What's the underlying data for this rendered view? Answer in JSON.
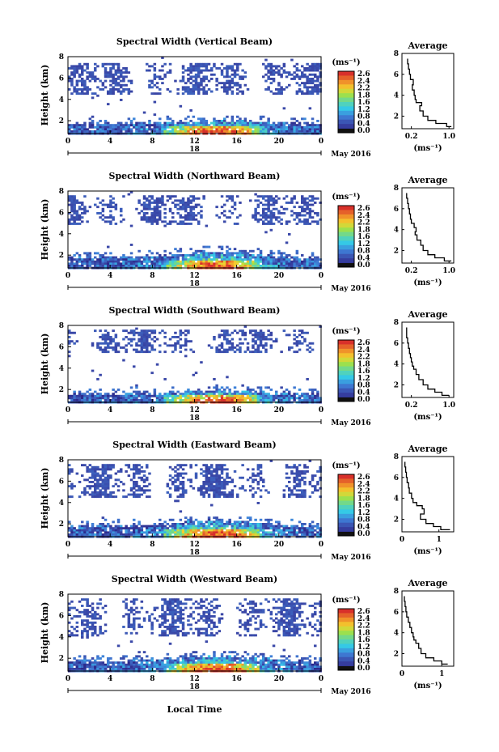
{
  "figure": {
    "colorbar_unit": "(ms⁻¹)",
    "colorbar_ticks": [
      "2.6",
      "2.4",
      "2.2",
      "1.8",
      "1.6",
      "1.2",
      "0.8",
      "0.4",
      "0.0"
    ],
    "x_ticks": [
      "0",
      "4",
      "8",
      "12",
      "16",
      "20",
      "0"
    ],
    "day_label": "18",
    "month_label": "May 2016",
    "xlabel": "Local Time",
    "ylabel": "Height (km)",
    "avg_title": "Average",
    "avg_unit": "(ms⁻¹)",
    "colors": {
      "dark_blue": "#3a48a8",
      "cyan": "#33c8e8",
      "green": "#7ad84a",
      "yellow": "#f4d22e",
      "orange": "#f08a2a",
      "red": "#d8302a"
    }
  },
  "chart_data": [
    {
      "type": "heatmap",
      "title": "Spectral Width (Vertical Beam)",
      "x_range_hours": [
        0,
        24
      ],
      "y_range_km": [
        0.8,
        8
      ],
      "y_ticks": [
        "2",
        "4",
        "6",
        "8"
      ],
      "upper_layer_km": [
        4.5,
        7.6
      ],
      "boundary_layer_top_km": 2.2,
      "max_width_ms": 2.4,
      "average_profile": {
        "x_ticks": [
          "0.2",
          "1.0"
        ],
        "xlim": [
          0,
          1.1
        ],
        "ylim": [
          0.8,
          8
        ],
        "height_km": [
          1.0,
          1.3,
          1.6,
          2.0,
          2.5,
          3.0,
          3.3,
          3.6,
          4.0,
          4.5,
          5.0,
          5.5,
          6.0,
          6.5,
          7.0,
          7.5
        ],
        "width_ms": [
          1.05,
          0.95,
          0.72,
          0.55,
          0.45,
          0.38,
          0.42,
          0.3,
          0.28,
          0.26,
          0.22,
          0.24,
          0.18,
          0.16,
          0.14,
          0.12
        ]
      }
    },
    {
      "type": "heatmap",
      "title": "Spectral Width (Northward Beam)",
      "x_range_hours": [
        0,
        24
      ],
      "y_range_km": [
        0.8,
        8
      ],
      "y_ticks": [
        "2",
        "4",
        "6",
        "8"
      ],
      "upper_layer_km": [
        5.0,
        7.8
      ],
      "boundary_layer_top_km": 2.4,
      "max_width_ms": 2.4,
      "average_profile": {
        "x_ticks": [
          "0.2",
          "1.0"
        ],
        "xlim": [
          0,
          1.1
        ],
        "ylim": [
          0.8,
          8
        ],
        "height_km": [
          1.0,
          1.3,
          1.6,
          2.0,
          2.5,
          3.0,
          3.5,
          3.8,
          4.2,
          4.6,
          5.0,
          5.5,
          6.0,
          6.5,
          7.0,
          7.5
        ],
        "width_ms": [
          1.05,
          0.9,
          0.7,
          0.55,
          0.45,
          0.4,
          0.32,
          0.28,
          0.3,
          0.26,
          0.2,
          0.18,
          0.16,
          0.14,
          0.12,
          0.1
        ]
      }
    },
    {
      "type": "heatmap",
      "title": "Spectral Width (Southward Beam)",
      "x_range_hours": [
        0,
        24
      ],
      "y_range_km": [
        0.8,
        8
      ],
      "y_ticks": [
        "2",
        "4",
        "6",
        "8"
      ],
      "upper_layer_km": [
        5.5,
        7.8
      ],
      "boundary_layer_top_km": 2.0,
      "max_width_ms": 2.4,
      "average_profile": {
        "x_ticks": [
          "0.2",
          "1.0"
        ],
        "xlim": [
          0,
          1.1
        ],
        "ylim": [
          0.8,
          8
        ],
        "height_km": [
          1.0,
          1.3,
          1.6,
          2.0,
          2.5,
          3.0,
          3.5,
          3.8,
          4.2,
          4.6,
          5.0,
          5.5,
          6.0,
          6.5,
          7.0,
          7.5
        ],
        "width_ms": [
          1.0,
          0.85,
          0.7,
          0.55,
          0.45,
          0.36,
          0.3,
          0.25,
          0.22,
          0.2,
          0.18,
          0.16,
          0.14,
          0.12,
          0.1,
          0.1
        ]
      }
    },
    {
      "type": "heatmap",
      "title": "Spectral Width (Eastward Beam)",
      "x_range_hours": [
        0,
        24
      ],
      "y_range_km": [
        0.8,
        8
      ],
      "y_ticks": [
        "2",
        "4",
        "6",
        "8"
      ],
      "upper_layer_km": [
        4.5,
        7.8
      ],
      "boundary_layer_top_km": 2.4,
      "max_width_ms": 2.4,
      "average_profile": {
        "x_ticks": [
          "0",
          "1"
        ],
        "xlim": [
          0,
          1.4
        ],
        "ylim": [
          0.8,
          8
        ],
        "height_km": [
          1.0,
          1.3,
          1.6,
          2.0,
          2.5,
          3.0,
          3.3,
          3.6,
          4.0,
          4.5,
          5.0,
          5.5,
          6.0,
          6.5,
          7.0,
          7.5
        ],
        "width_ms": [
          1.3,
          1.05,
          0.85,
          0.65,
          0.5,
          0.6,
          0.55,
          0.4,
          0.3,
          0.26,
          0.2,
          0.18,
          0.14,
          0.12,
          0.1,
          0.08
        ]
      }
    },
    {
      "type": "heatmap",
      "title": "Spectral Width (Westward Beam)",
      "x_range_hours": [
        0,
        24
      ],
      "y_range_km": [
        0.8,
        8
      ],
      "y_ticks": [
        "2",
        "4",
        "6",
        "8"
      ],
      "upper_layer_km": [
        4.2,
        7.8
      ],
      "boundary_layer_top_km": 2.3,
      "max_width_ms": 2.4,
      "average_profile": {
        "x_ticks": [
          "0",
          "1"
        ],
        "xlim": [
          0,
          1.3
        ],
        "ylim": [
          0.8,
          8
        ],
        "height_km": [
          1.0,
          1.3,
          1.6,
          2.0,
          2.5,
          3.0,
          3.3,
          3.6,
          4.0,
          4.5,
          5.0,
          5.5,
          6.0,
          6.5,
          7.0,
          7.5
        ],
        "width_ms": [
          1.15,
          1.0,
          0.8,
          0.6,
          0.48,
          0.42,
          0.35,
          0.3,
          0.28,
          0.24,
          0.2,
          0.16,
          0.12,
          0.1,
          0.08,
          0.06
        ]
      }
    }
  ]
}
